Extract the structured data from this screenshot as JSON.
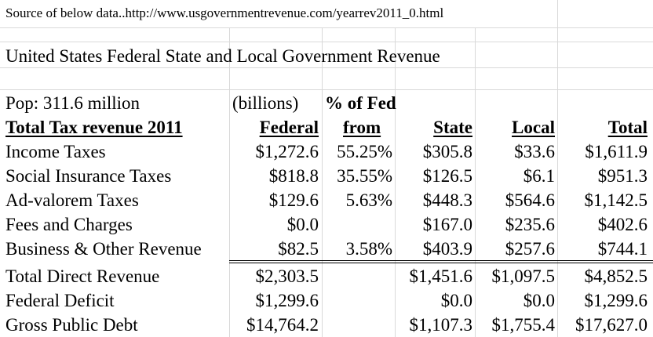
{
  "source_line": "Source of below data..http://www.usgovernmentrevenue.com/yearrev2011_0.html",
  "title": "United States Federal  State and Local Government Revenue",
  "pop_label": "Pop: 311.6 million",
  "units_label": "(billions)",
  "pct_header": "% of Fed",
  "table": {
    "headers": [
      "Total Tax revenue 2011 ",
      "Federal",
      "from",
      "State",
      "Local",
      "Total"
    ],
    "rows": [
      {
        "label": "Income Taxes",
        "federal": "$1,272.6",
        "pct": "55.25%",
        "state": "$305.8",
        "local": "$33.6",
        "total": "$1,611.9"
      },
      {
        "label": "Social Insurance Taxes",
        "federal": "$818.8",
        "pct": "35.55%",
        "state": "$126.5",
        "local": "$6.1",
        "total": "$951.3"
      },
      {
        "label": "Ad-valorem Taxes",
        "federal": "$129.6",
        "pct": "5.63%",
        "state": "$448.3",
        "local": "$564.6",
        "total": "$1,142.5"
      },
      {
        "label": "Fees and Charges",
        "federal": "$0.0",
        "pct": "",
        "state": "$167.0",
        "local": "$235.6",
        "total": "$402.6"
      },
      {
        "label": "Business & Other Revenue",
        "federal": "$82.5",
        "pct": "3.58%",
        "state": "$403.9",
        "local": "$257.6",
        "total": "$744.1"
      }
    ],
    "summary_rows": [
      {
        "label": "Total Direct Revenue",
        "federal": "$2,303.5",
        "pct": "",
        "state": "$1,451.6",
        "local": "$1,097.5",
        "total": "$4,852.5"
      },
      {
        "label": "Federal Deficit",
        "federal": "$1,299.6",
        "pct": "",
        "state": "$0.0",
        "local": "$0.0",
        "total": "$1,299.6"
      },
      {
        "label": "Gross Public Debt",
        "federal": "$14,764.2",
        "pct": "",
        "state": "$1,107.3",
        "local": "$1,755.4",
        "total": "$17,627.0"
      }
    ]
  }
}
